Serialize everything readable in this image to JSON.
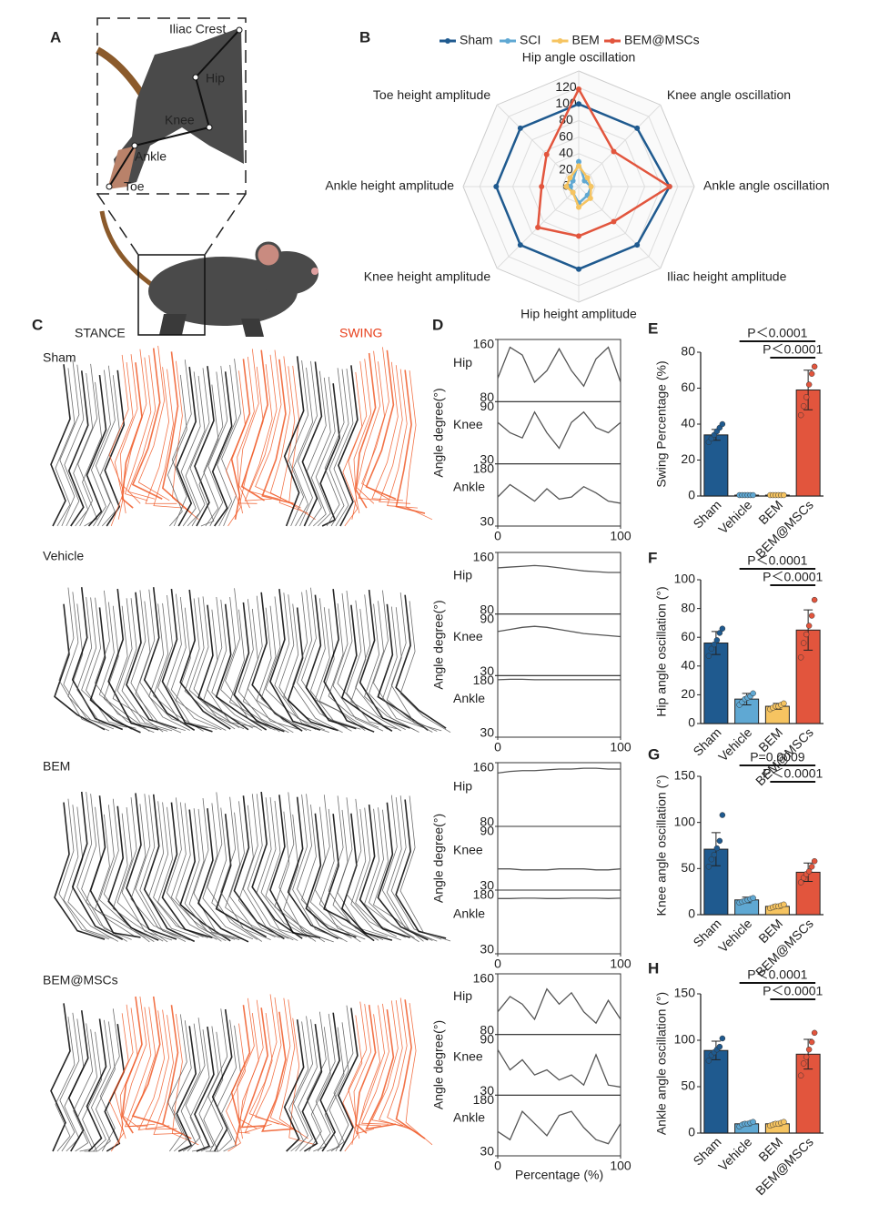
{
  "panel_labels": [
    "A",
    "B",
    "C",
    "D",
    "E",
    "F",
    "G",
    "H"
  ],
  "diagram": {
    "labels": [
      "Iliac Crest",
      "Hip",
      "Knee",
      "Ankle",
      "Toe"
    ]
  },
  "gait": {
    "stance_label": "STANCE",
    "swing_label": "SWING",
    "groups": [
      "Sham",
      "Vehicle",
      "BEM",
      "BEM@MSCs"
    ]
  },
  "chart_data": [
    {
      "type": "radar",
      "categories": [
        "Hip angle oscillation",
        "Knee angle oscillation",
        "Ankle angle oscillation",
        "Iliac height amplitude",
        "Hip height amplitude",
        "Knee height amplitude",
        "Ankle height amplitude",
        "Toe height amplitude"
      ],
      "series": [
        {
          "name": "Sham",
          "color": "#1f5a8f",
          "values": [
            100,
            100,
            110,
            100,
            100,
            100,
            100,
            100
          ]
        },
        {
          "name": "SCI",
          "color": "#5fa8d3",
          "values": [
            30,
            10,
            15,
            15,
            20,
            10,
            10,
            10
          ]
        },
        {
          "name": "BEM",
          "color": "#f6c461",
          "values": [
            25,
            15,
            15,
            20,
            25,
            10,
            15,
            15
          ]
        },
        {
          "name": "BEM@MSCs",
          "color": "#e2553d",
          "values": [
            118,
            60,
            110,
            60,
            60,
            70,
            45,
            55
          ]
        }
      ],
      "ylim": [
        0,
        140
      ],
      "yticks": [
        0,
        20,
        40,
        60,
        80,
        100,
        120
      ],
      "grid": true
    },
    {
      "type": "line",
      "y_label": "Angle degree(°)",
      "color": "#555555",
      "x": [
        0,
        10,
        20,
        30,
        40,
        50,
        60,
        70,
        80,
        90,
        100
      ],
      "xlim": [
        0,
        100
      ],
      "xticks": [
        0,
        100
      ],
      "tracks": [
        {
          "name": "Hip",
          "ylim": [
            80,
            160
          ],
          "yticks": [
            80,
            160
          ],
          "values": [
            110,
            150,
            140,
            105,
            120,
            148,
            120,
            100,
            135,
            150,
            105
          ]
        },
        {
          "name": "Knee",
          "ylim": [
            30,
            90
          ],
          "yticks": [
            30,
            90
          ],
          "values": [
            70,
            60,
            55,
            80,
            60,
            45,
            70,
            80,
            65,
            60,
            70
          ]
        },
        {
          "name": "Ankle",
          "ylim": [
            30,
            180
          ],
          "yticks": [
            30,
            180
          ],
          "values": [
            100,
            130,
            110,
            90,
            120,
            95,
            100,
            125,
            110,
            90,
            85
          ]
        }
      ]
    },
    {
      "type": "line",
      "y_label": "Angle degree(°)",
      "color": "#555555",
      "x": [
        0,
        10,
        20,
        30,
        40,
        50,
        60,
        70,
        80,
        90,
        100
      ],
      "xlim": [
        0,
        100
      ],
      "xticks": [
        0,
        100
      ],
      "tracks": [
        {
          "name": "Hip",
          "ylim": [
            80,
            160
          ],
          "yticks": [
            80,
            160
          ],
          "values": [
            140,
            141,
            142,
            143,
            142,
            140,
            138,
            136,
            135,
            134,
            134
          ]
        },
        {
          "name": "Knee",
          "ylim": [
            30,
            90
          ],
          "yticks": [
            30,
            90
          ],
          "values": [
            73,
            75,
            77,
            78,
            77,
            75,
            73,
            71,
            70,
            69,
            68
          ]
        },
        {
          "name": "Ankle",
          "ylim": [
            30,
            180
          ],
          "yticks": [
            30,
            180
          ],
          "values": [
            170,
            171,
            171,
            170,
            170,
            170,
            170,
            170,
            170,
            170,
            170
          ]
        }
      ]
    },
    {
      "type": "line",
      "y_label": "Angle degree(°)",
      "color": "#555555",
      "x": [
        0,
        10,
        20,
        30,
        40,
        50,
        60,
        70,
        80,
        90,
        100
      ],
      "xlim": [
        0,
        100
      ],
      "xticks": [
        0,
        100
      ],
      "tracks": [
        {
          "name": "Hip",
          "ylim": [
            80,
            160
          ],
          "yticks": [
            80,
            160
          ],
          "values": [
            147,
            149,
            150,
            150,
            151,
            152,
            152,
            153,
            153,
            152,
            152
          ]
        },
        {
          "name": "Knee",
          "ylim": [
            30,
            90
          ],
          "yticks": [
            30,
            90
          ],
          "values": [
            50,
            50,
            49,
            49,
            49,
            50,
            50,
            50,
            49,
            49,
            50
          ]
        },
        {
          "name": "Ankle",
          "ylim": [
            30,
            180
          ],
          "yticks": [
            30,
            180
          ],
          "values": [
            160,
            160,
            161,
            161,
            160,
            160,
            161,
            161,
            161,
            160,
            161
          ]
        }
      ]
    },
    {
      "type": "line",
      "y_label": "Angle degree(°)",
      "x_label": "Percentage (%)",
      "color": "#555555",
      "x": [
        0,
        10,
        20,
        30,
        40,
        50,
        60,
        70,
        80,
        90,
        100
      ],
      "xlim": [
        0,
        100
      ],
      "xticks": [
        0,
        100
      ],
      "tracks": [
        {
          "name": "Hip",
          "ylim": [
            80,
            160
          ],
          "yticks": [
            80,
            160
          ],
          "values": [
            110,
            130,
            120,
            100,
            140,
            120,
            135,
            110,
            95,
            125,
            100
          ]
        },
        {
          "name": "Knee",
          "ylim": [
            30,
            90
          ],
          "yticks": [
            30,
            90
          ],
          "values": [
            75,
            55,
            65,
            50,
            55,
            45,
            50,
            40,
            70,
            40,
            38
          ]
        },
        {
          "name": "Ankle",
          "ylim": [
            30,
            180
          ],
          "yticks": [
            30,
            180
          ],
          "values": [
            90,
            70,
            140,
            110,
            80,
            130,
            140,
            100,
            70,
            60,
            110
          ]
        }
      ]
    },
    {
      "type": "bar",
      "y_label": "Swing Percentage (%)",
      "categories": [
        "Sham",
        "Vehicle",
        "BEM",
        "BEM@MSCs"
      ],
      "colors": [
        "#1f5a8f",
        "#5fa8d3",
        "#f6c461",
        "#e2553d"
      ],
      "values": [
        34,
        0.5,
        0.5,
        59
      ],
      "errors": [
        3,
        0,
        0,
        11
      ],
      "points": [
        [
          30,
          32,
          34,
          36,
          38,
          40
        ],
        [
          0.5,
          0.5,
          0.5,
          0.5,
          0.5,
          0.5
        ],
        [
          0.5,
          0.5,
          0.5,
          0.5,
          0.5,
          0.5
        ],
        [
          45,
          50,
          55,
          62,
          68,
          72
        ]
      ],
      "ylim": [
        0,
        80
      ],
      "yticks": [
        0,
        20,
        40,
        60,
        80
      ],
      "annotations": [
        "P＜0.0001",
        "P＜0.0001"
      ]
    },
    {
      "type": "bar",
      "y_label": "Hip angle oscillation (°)",
      "categories": [
        "Sham",
        "Vehicle",
        "BEM",
        "BEM@MSCs"
      ],
      "colors": [
        "#1f5a8f",
        "#5fa8d3",
        "#f6c461",
        "#e2553d"
      ],
      "values": [
        56,
        17,
        12,
        65
      ],
      "errors": [
        8,
        4,
        2,
        14
      ],
      "points": [
        [
          47,
          52,
          55,
          58,
          63,
          66
        ],
        [
          13,
          15,
          17,
          18,
          19,
          21
        ],
        [
          10,
          11,
          12,
          12,
          13,
          14
        ],
        [
          46,
          56,
          62,
          68,
          75,
          86
        ]
      ],
      "ylim": [
        0,
        100
      ],
      "yticks": [
        0,
        20,
        40,
        60,
        80,
        100
      ],
      "annotations": [
        "P＜0.0001",
        "P＜0.0001"
      ]
    },
    {
      "type": "bar",
      "y_label": "Knee angle oscillation (°)",
      "categories": [
        "Sham",
        "Vehicle",
        "BEM",
        "BEM@MSCs"
      ],
      "colors": [
        "#1f5a8f",
        "#5fa8d3",
        "#f6c461",
        "#e2553d"
      ],
      "values": [
        71,
        16,
        9,
        46
      ],
      "errors": [
        18,
        3,
        2,
        10
      ],
      "points": [
        [
          52,
          60,
          65,
          72,
          80,
          108
        ],
        [
          13,
          14,
          15,
          16,
          17,
          18
        ],
        [
          7,
          8,
          9,
          9,
          10,
          11
        ],
        [
          35,
          40,
          44,
          47,
          52,
          58
        ]
      ],
      "ylim": [
        0,
        150
      ],
      "yticks": [
        0,
        50,
        100,
        150
      ],
      "annotations": [
        "P=0.0009",
        "P＜0.0001"
      ]
    },
    {
      "type": "bar",
      "y_label": "Ankle angle oscillation (°)",
      "categories": [
        "Sham",
        "Vehicle",
        "BEM",
        "BEM@MSCs"
      ],
      "colors": [
        "#1f5a8f",
        "#5fa8d3",
        "#f6c461",
        "#e2553d"
      ],
      "values": [
        89,
        10,
        10,
        85
      ],
      "errors": [
        10,
        2,
        2,
        16
      ],
      "points": [
        [
          78,
          84,
          87,
          90,
          93,
          102
        ],
        [
          7,
          9,
          10,
          10,
          11,
          12
        ],
        [
          8,
          9,
          10,
          10,
          11,
          12
        ],
        [
          62,
          75,
          82,
          90,
          98,
          108
        ]
      ],
      "ylim": [
        0,
        150
      ],
      "yticks": [
        0,
        50,
        100,
        150
      ],
      "annotations": [
        "P＜0.0001",
        "P＜0.0001"
      ]
    }
  ]
}
